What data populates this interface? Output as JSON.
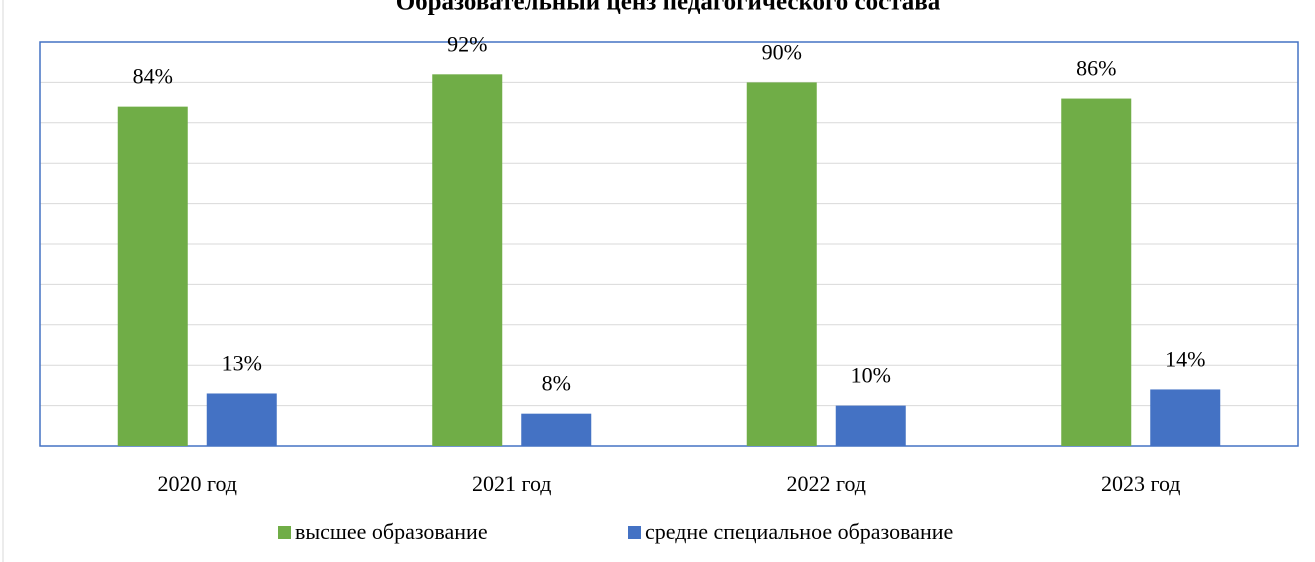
{
  "chart_data": {
    "type": "bar",
    "title": "Образовательный ценз педагогического состава",
    "categories": [
      "2020 год",
      "2021 год",
      "2022 год",
      "2023 год"
    ],
    "series": [
      {
        "name": "высшее образование",
        "color": "#70ad47",
        "values": [
          84,
          92,
          90,
          86
        ],
        "value_labels": [
          "84%",
          "92%",
          "90%",
          "86%"
        ]
      },
      {
        "name": "средне специальное образование",
        "color": "#4472c4",
        "values": [
          13,
          8,
          10,
          14
        ],
        "value_labels": [
          "13%",
          "8%",
          "10%",
          "14%"
        ]
      }
    ],
    "ylim": [
      0,
      100
    ],
    "yticks": [
      0,
      10,
      20,
      30,
      40,
      50,
      60,
      70,
      80,
      90,
      100
    ],
    "grid": true,
    "legend": "bottom"
  }
}
